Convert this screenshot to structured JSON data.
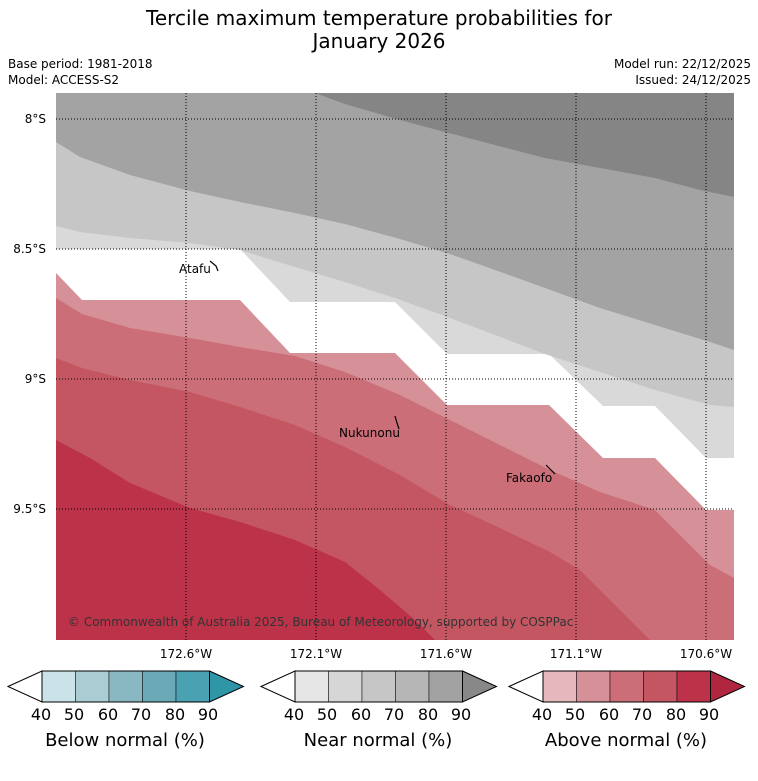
{
  "title": {
    "line1": "Tercile maximum temperature probabilities for",
    "line2": "January 2026"
  },
  "meta": {
    "base_period": "Base period: 1981-2018",
    "model": "Model: ACCESS-S2",
    "model_run": "Model run: 22/12/2025",
    "issued": "Issued: 24/12/2025"
  },
  "map": {
    "lat_labels": [
      "8°S",
      "8.5°S",
      "9°S",
      "9.5°S"
    ],
    "lon_labels": [
      "172.6°W",
      "172.1°W",
      "171.6°W",
      "171.1°W",
      "170.6°W"
    ],
    "places": [
      "Atafu",
      "Nukunonu",
      "Fakaofo"
    ],
    "copyright": "© Commonwealth of Australia 2025, Bureau of Meteorology, supported by COSPPac"
  },
  "colorbars": [
    {
      "name": "below",
      "title": "Below normal (%)",
      "ticks": [
        "40",
        "50",
        "60",
        "70",
        "80",
        "90"
      ],
      "colors": [
        "#c9e3e8",
        "#a9cdd3",
        "#8ab8c2",
        "#6aa9b5",
        "#4aa1b2",
        "#2f96a8"
      ]
    },
    {
      "name": "near",
      "title": "Near normal (%)",
      "ticks": [
        "40",
        "50",
        "60",
        "70",
        "80",
        "90"
      ],
      "colors": [
        "#e6e6e6",
        "#d6d6d6",
        "#c6c6c6",
        "#b6b6b6",
        "#a2a2a2",
        "#888888"
      ]
    },
    {
      "name": "above",
      "title": "Above normal (%)",
      "ticks": [
        "40",
        "50",
        "60",
        "70",
        "80",
        "90"
      ],
      "colors": [
        "#e4b8bd",
        "#d69198",
        "#cc6e78",
        "#c45661",
        "#bb3249",
        "#b1263f"
      ]
    }
  ]
}
